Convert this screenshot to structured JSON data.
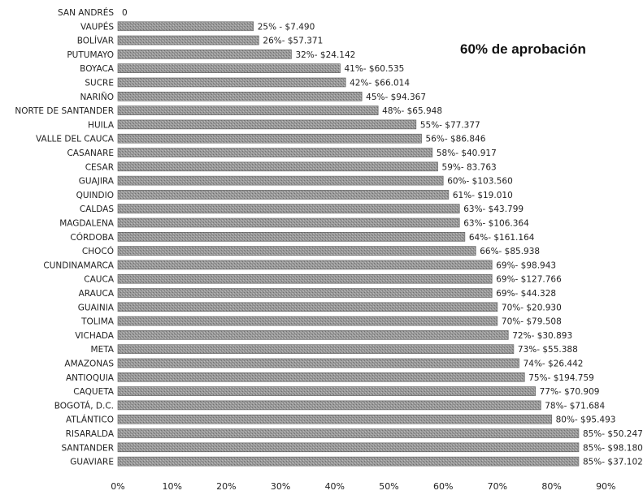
{
  "chart_data": {
    "type": "bar",
    "orientation": "horizontal",
    "annotation": "60% de aprobación",
    "categories": [
      "SAN ANDRÉS",
      "VAUPÉS",
      "BOLÍVAR",
      "PUTUMAYO",
      "BOYACA",
      "SUCRE",
      "NARIÑO",
      "NORTE DE SANTANDER",
      "HUILA",
      "VALLE DEL CAUCA",
      "CASANARE",
      "CESAR",
      "GUAJIRA",
      "QUINDIO",
      "CALDAS",
      "MAGDALENA",
      "CÓRDOBA",
      "CHOCÓ",
      "CUNDINAMARCA",
      "CAUCA",
      "ARAUCA",
      "GUAINIA",
      "TOLIMA",
      "VICHADA",
      "META",
      "AMAZONAS",
      "ANTIOQUIA",
      "CAQUETA",
      "BOGOTÁ, D.C.",
      "ATLÁNTICO",
      "RISARALDA",
      "SANTANDER",
      "GUAVIARE"
    ],
    "values": [
      0,
      25,
      26,
      32,
      41,
      42,
      45,
      48,
      55,
      56,
      58,
      59,
      60,
      61,
      63,
      63,
      64,
      66,
      69,
      69,
      69,
      70,
      70,
      72,
      73,
      74,
      75,
      77,
      78,
      80,
      85,
      85,
      85
    ],
    "data_labels": [
      "0",
      "25% - $7.490",
      "26%- $57.371",
      "32%- $24.142",
      "41%- $60.535",
      "42%- $66.014",
      "45%- $94.367",
      "48%- $65.948",
      "55%- $77.377",
      "56%- $86.846",
      "58%- $40.917",
      "59%- 83.763",
      "60%- $103.560",
      "61%- $19.010",
      "63%- $43.799",
      "63%- $106.364",
      "64%- $161.164",
      "66%- $85.938",
      "69%- $98.943",
      "69%- $127.766",
      "69%- $44.328",
      "70%- $20.930",
      "70%- $79.508",
      "72%- $30.893",
      "73%- $55.388",
      "74%- $26.442",
      "75%- $194.759",
      "77%- $70.909",
      "78%- $71.684",
      "80%- $95.493",
      "85%- $50.247",
      "85%- $98.180",
      "85%- $37.102"
    ],
    "xticks": [
      "0%",
      "10%",
      "20%",
      "30%",
      "40%",
      "50%",
      "60%",
      "70%",
      "80%",
      "90%"
    ],
    "xlim": [
      0,
      90
    ],
    "grid": false,
    "bar_color": "#8c8c8c"
  }
}
